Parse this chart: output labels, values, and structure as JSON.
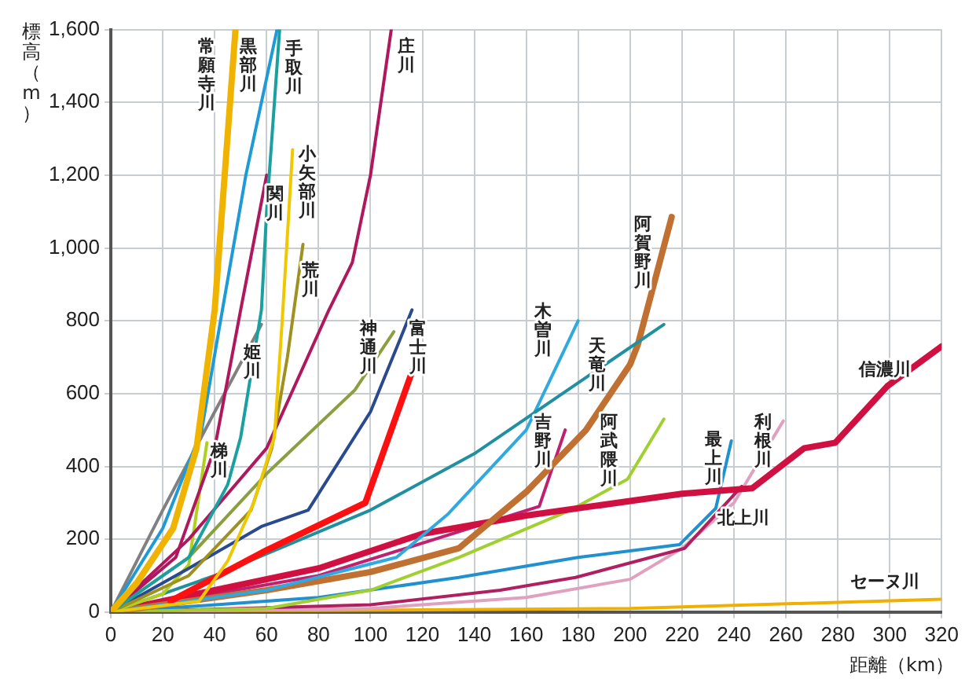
{
  "chart_data": {
    "type": "line",
    "xlabel": "距離（km）",
    "ylabel": "標高（m）",
    "xlim": [
      0,
      320
    ],
    "ylim": [
      0,
      1600
    ],
    "xticks": [
      0,
      20,
      40,
      60,
      80,
      100,
      120,
      140,
      160,
      180,
      200,
      220,
      240,
      260,
      280,
      300,
      320
    ],
    "yticks": [
      0,
      {
        "value": 200,
        "label": "200"
      },
      {
        "value": 400,
        "label": "400"
      },
      {
        "value": 600,
        "label": "600"
      },
      {
        "value": 800,
        "label": "800"
      },
      {
        "value": 1000,
        "label": "1,000"
      },
      {
        "value": 1200,
        "label": "1,200"
      },
      {
        "value": 1400,
        "label": "1,400"
      },
      {
        "value": 1600,
        "label": "1,600"
      }
    ],
    "grid": true,
    "legend": false,
    "marker": "none",
    "line_style": "solid",
    "series": [
      {
        "name": "常願寺川",
        "color": "#f0b400",
        "x": [
          0,
          10,
          24,
          33,
          40,
          48
        ],
        "values": [
          0,
          80,
          230,
          450,
          830,
          1600
        ]
      },
      {
        "name": "黒部川",
        "color": "#1e9ad6",
        "x": [
          0,
          20,
          35,
          42,
          52,
          64
        ],
        "values": [
          0,
          230,
          500,
          790,
          1200,
          1600
        ]
      },
      {
        "name": "手取川",
        "color": "#1aa0a0",
        "x": [
          0,
          30,
          45,
          50,
          58,
          60,
          65
        ],
        "values": [
          0,
          150,
          350,
          480,
          830,
          1100,
          1600
        ]
      },
      {
        "name": "関川",
        "color": "#b0185e",
        "x": [
          0,
          25,
          40,
          50,
          60
        ],
        "values": [
          0,
          150,
          450,
          830,
          1200
        ]
      },
      {
        "name": "小矢部川",
        "color": "#f0c800",
        "x": [
          0,
          34,
          45,
          55,
          63,
          66,
          70
        ],
        "values": [
          0,
          30,
          140,
          300,
          480,
          800,
          1270
        ]
      },
      {
        "name": "荒川",
        "color": "#a09020",
        "x": [
          0,
          30,
          54,
          62,
          68,
          74
        ],
        "values": [
          0,
          100,
          280,
          450,
          700,
          1010
        ]
      },
      {
        "name": "庄川",
        "color": "#b0185e",
        "x": [
          0,
          30,
          60,
          84,
          93,
          100,
          108
        ],
        "values": [
          0,
          200,
          450,
          830,
          960,
          1200,
          1600
        ]
      },
      {
        "name": "姫川",
        "color": "#808080",
        "x": [
          0,
          20,
          40,
          58
        ],
        "values": [
          0,
          280,
          550,
          790
        ]
      },
      {
        "name": "神通川",
        "color": "#8aa040",
        "x": [
          0,
          30,
          60,
          94,
          109
        ],
        "values": [
          0,
          150,
          380,
          610,
          770
        ]
      },
      {
        "name": "富士川",
        "color": "#2a4a90",
        "x": [
          0,
          30,
          58,
          76,
          100,
          116
        ],
        "values": [
          0,
          120,
          235,
          280,
          550,
          830
        ]
      },
      {
        "color": "#ff1010",
        "x": [
          23,
          60,
          98,
          116
        ],
        "values": [
          30,
          170,
          300,
          660
        ]
      },
      {
        "name": "梯川",
        "color": "#b0d020",
        "x": [
          0,
          20,
          30,
          37
        ],
        "values": [
          0,
          50,
          130,
          465
        ]
      },
      {
        "name": "天竜川",
        "color": "#2090a0",
        "x": [
          0,
          40,
          100,
          140,
          213
        ],
        "values": [
          0,
          100,
          280,
          435,
          790
        ]
      },
      {
        "name": "木曽川",
        "color": "#30a8e0",
        "x": [
          0,
          60,
          110,
          130,
          160,
          180
        ],
        "values": [
          0,
          60,
          150,
          270,
          500,
          800
        ]
      },
      {
        "name": "阿賀野川",
        "color": "#c07030",
        "x": [
          0,
          60,
          100,
          134,
          160,
          183,
          200,
          203,
          216
        ],
        "values": [
          0,
          60,
          110,
          175,
          330,
          500,
          680,
          735,
          1085
        ]
      },
      {
        "name": "信濃川",
        "color": "#d01040",
        "x": [
          0,
          40,
          80,
          120,
          160,
          220,
          247,
          267,
          279,
          299,
          320
        ],
        "values": [
          0,
          60,
          120,
          215,
          265,
          325,
          340,
          450,
          465,
          620,
          730
        ]
      },
      {
        "name": "吉野川",
        "color": "#c02070",
        "x": [
          0,
          80,
          165,
          175
        ],
        "values": [
          0,
          100,
          290,
          500
        ]
      },
      {
        "name": "阿武隈川",
        "color": "#a0d030",
        "x": [
          0,
          60,
          100,
          134,
          177,
          199,
          213
        ],
        "values": [
          0,
          10,
          60,
          150,
          280,
          365,
          530
        ]
      },
      {
        "name": "最上川",
        "color": "#2090d0",
        "x": [
          0,
          80,
          134,
          180,
          219,
          233,
          239
        ],
        "values": [
          0,
          40,
          95,
          150,
          185,
          285,
          470
        ]
      },
      {
        "name": "北上川",
        "color": "#b02060",
        "x": [
          0,
          100,
          150,
          179,
          221,
          243
        ],
        "values": [
          0,
          20,
          60,
          95,
          175,
          345
        ]
      },
      {
        "name": "利根川",
        "color": "#e0a0c0",
        "x": [
          0,
          100,
          160,
          200,
          220,
          240,
          259
        ],
        "values": [
          0,
          10,
          40,
          90,
          175,
          300,
          525
        ]
      },
      {
        "name": "セーヌ川",
        "color": "#f0b000",
        "x": [
          0,
          100,
          200,
          320
        ],
        "values": [
          0,
          5,
          10,
          35
        ]
      }
    ]
  }
}
